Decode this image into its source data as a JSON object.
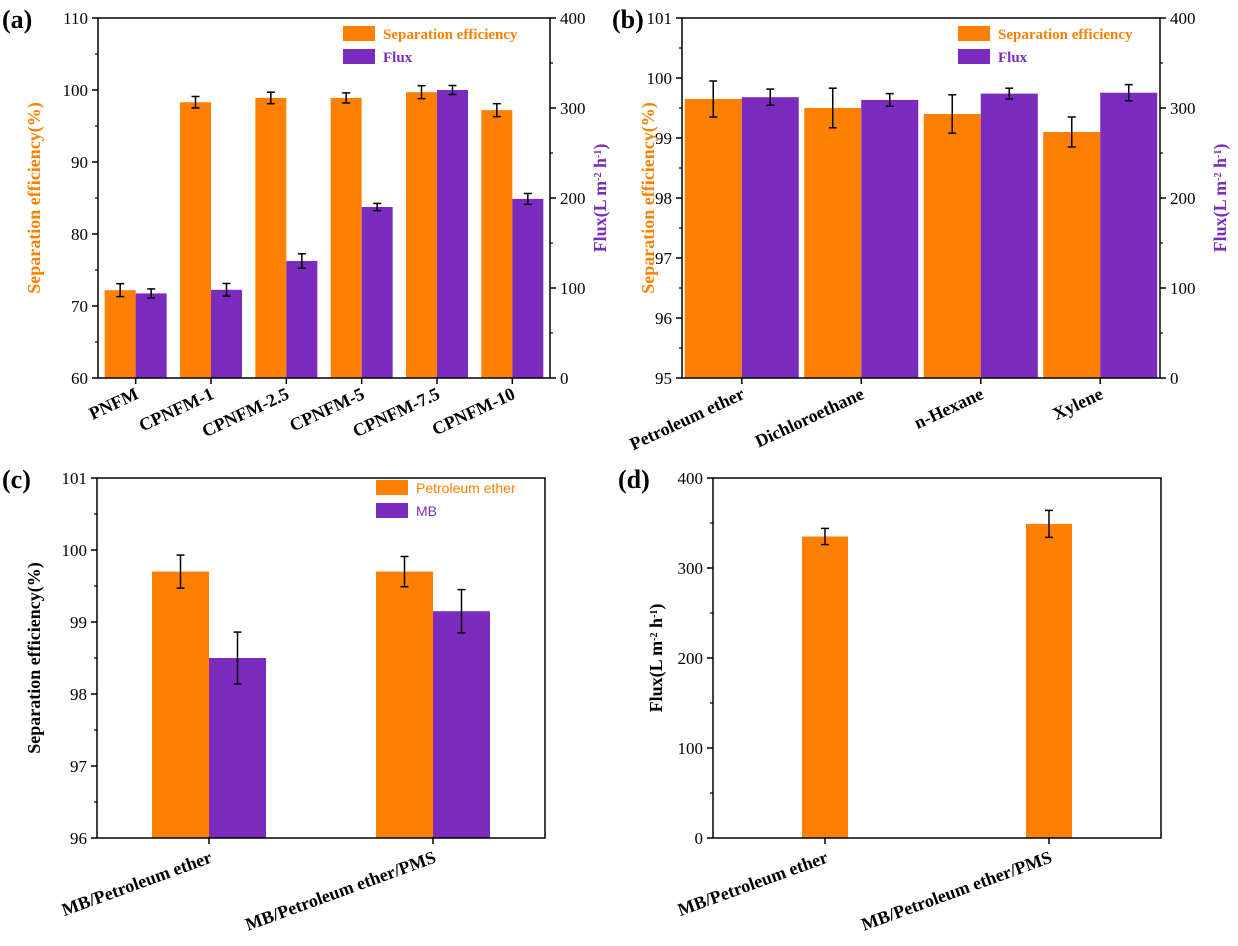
{
  "colors": {
    "orange": "#FF8000",
    "purple": "#7B2CBF",
    "axis": "#000000"
  },
  "chart_data": [
    {
      "panel": "(a)",
      "type": "bar",
      "categories": [
        "PNFM",
        "CPNFM-1",
        "CPNFM-2.5",
        "CPNFM-5",
        "CPNFM-7.5",
        "CPNFM-10"
      ],
      "series": [
        {
          "name": "Separation efficiency",
          "axis": "left",
          "color": "orange",
          "values": [
            72.2,
            98.3,
            98.9,
            98.9,
            99.7,
            97.2
          ],
          "errors": [
            0.9,
            0.8,
            0.8,
            0.7,
            0.9,
            0.9
          ]
        },
        {
          "name": "Flux",
          "axis": "right",
          "color": "purple",
          "values": [
            94,
            98,
            130,
            190,
            320,
            199
          ],
          "errors": [
            5,
            7,
            8,
            4,
            5,
            6
          ]
        }
      ],
      "left_axis": {
        "label": "Separation efficiency(%)",
        "lim": [
          60,
          110
        ],
        "ticks": [
          60,
          70,
          80,
          90,
          100,
          110
        ]
      },
      "right_axis": {
        "label": "Flux(L m^-2 h^-1)",
        "lim": [
          0,
          400
        ],
        "ticks": [
          0,
          100,
          200,
          300,
          400
        ]
      },
      "legend": "top-right"
    },
    {
      "panel": "(b)",
      "type": "bar",
      "categories": [
        "Petroleum ether",
        "Dichloroethane",
        "n-Hexane",
        "Xylene"
      ],
      "series": [
        {
          "name": "Separation efficiency",
          "axis": "left",
          "color": "orange",
          "values": [
            99.65,
            99.5,
            99.4,
            99.1
          ],
          "errors": [
            0.3,
            0.33,
            0.32,
            0.25
          ]
        },
        {
          "name": "Flux",
          "axis": "right",
          "color": "purple",
          "values": [
            312,
            309,
            316,
            317
          ],
          "errors": [
            9,
            7,
            6,
            9
          ]
        }
      ],
      "left_axis": {
        "label": "Separation efficiency(%)",
        "lim": [
          95,
          101
        ],
        "ticks": [
          95,
          96,
          97,
          98,
          99,
          100,
          101
        ]
      },
      "right_axis": {
        "label": "Flux(L m^-2 h^-1)",
        "lim": [
          0,
          400
        ],
        "ticks": [
          0,
          100,
          200,
          300,
          400
        ]
      },
      "legend": "top-right"
    },
    {
      "panel": "(c)",
      "type": "bar",
      "categories": [
        "MB/Petroleum ether",
        "MB/Petroleum ether/PMS"
      ],
      "series": [
        {
          "name": "Petroleum ether",
          "axis": "left",
          "color": "orange",
          "values": [
            99.7,
            99.7
          ],
          "errors": [
            0.23,
            0.21
          ]
        },
        {
          "name": "MB",
          "axis": "left",
          "color": "purple",
          "values": [
            98.5,
            99.15
          ],
          "errors": [
            0.36,
            0.3
          ]
        }
      ],
      "left_axis": {
        "label": "Separation efficiency(%)",
        "lim": [
          96,
          101
        ],
        "ticks": [
          96,
          97,
          98,
          99,
          100,
          101
        ]
      },
      "legend": "top-right"
    },
    {
      "panel": "(d)",
      "type": "bar",
      "categories": [
        "MB/Petroleum ether",
        "MB/Petroleum ether/PMS"
      ],
      "series": [
        {
          "name": "Flux",
          "axis": "left",
          "color": "orange",
          "values": [
            335,
            349
          ],
          "errors": [
            9,
            15
          ]
        }
      ],
      "left_axis": {
        "label": "Flux(L m^-2 h^-1)",
        "lim": [
          0,
          400
        ],
        "ticks": [
          0,
          100,
          200,
          300,
          400
        ]
      }
    }
  ]
}
